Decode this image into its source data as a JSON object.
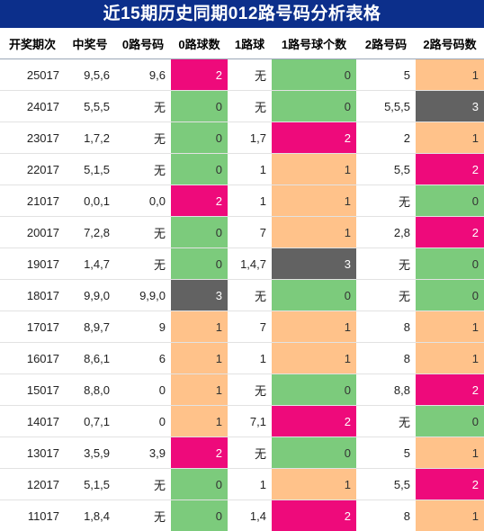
{
  "title": "近15期历史同期012路号码分析表格",
  "headers": [
    "开奖期次",
    "中奖号",
    "0路号码",
    "0路球数",
    "1路球",
    "1路号球个数",
    "2路号码",
    "2路号码数"
  ],
  "color_codes": {
    "0": "#7ccb7c",
    "1": "#ffc28a",
    "2": "#ee0a7b",
    "3": "#626262"
  },
  "rows": [
    {
      "issue": "25017",
      "numbers": "9,5,6",
      "r0": "9,6",
      "r0n": "2",
      "r1": "无",
      "r1n": "0",
      "r2": "5",
      "r2n": "1"
    },
    {
      "issue": "24017",
      "numbers": "5,5,5",
      "r0": "无",
      "r0n": "0",
      "r1": "无",
      "r1n": "0",
      "r2": "5,5,5",
      "r2n": "3"
    },
    {
      "issue": "23017",
      "numbers": "1,7,2",
      "r0": "无",
      "r0n": "0",
      "r1": "1,7",
      "r1n": "2",
      "r2": "2",
      "r2n": "1"
    },
    {
      "issue": "22017",
      "numbers": "5,1,5",
      "r0": "无",
      "r0n": "0",
      "r1": "1",
      "r1n": "1",
      "r2": "5,5",
      "r2n": "2"
    },
    {
      "issue": "21017",
      "numbers": "0,0,1",
      "r0": "0,0",
      "r0n": "2",
      "r1": "1",
      "r1n": "1",
      "r2": "无",
      "r2n": "0"
    },
    {
      "issue": "20017",
      "numbers": "7,2,8",
      "r0": "无",
      "r0n": "0",
      "r1": "7",
      "r1n": "1",
      "r2": "2,8",
      "r2n": "2"
    },
    {
      "issue": "19017",
      "numbers": "1,4,7",
      "r0": "无",
      "r0n": "0",
      "r1": "1,4,7",
      "r1n": "3",
      "r2": "无",
      "r2n": "0"
    },
    {
      "issue": "18017",
      "numbers": "9,9,0",
      "r0": "9,9,0",
      "r0n": "3",
      "r1": "无",
      "r1n": "0",
      "r2": "无",
      "r2n": "0"
    },
    {
      "issue": "17017",
      "numbers": "8,9,7",
      "r0": "9",
      "r0n": "1",
      "r1": "7",
      "r1n": "1",
      "r2": "8",
      "r2n": "1"
    },
    {
      "issue": "16017",
      "numbers": "8,6,1",
      "r0": "6",
      "r0n": "1",
      "r1": "1",
      "r1n": "1",
      "r2": "8",
      "r2n": "1"
    },
    {
      "issue": "15017",
      "numbers": "8,8,0",
      "r0": "0",
      "r0n": "1",
      "r1": "无",
      "r1n": "0",
      "r2": "8,8",
      "r2n": "2"
    },
    {
      "issue": "14017",
      "numbers": "0,7,1",
      "r0": "0",
      "r0n": "1",
      "r1": "7,1",
      "r1n": "2",
      "r2": "无",
      "r2n": "0"
    },
    {
      "issue": "13017",
      "numbers": "3,5,9",
      "r0": "3,9",
      "r0n": "2",
      "r1": "无",
      "r1n": "0",
      "r2": "5",
      "r2n": "1"
    },
    {
      "issue": "12017",
      "numbers": "5,1,5",
      "r0": "无",
      "r0n": "0",
      "r1": "1",
      "r1n": "1",
      "r2": "5,5",
      "r2n": "2"
    },
    {
      "issue": "11017",
      "numbers": "1,8,4",
      "r0": "无",
      "r0n": "0",
      "r1": "1,4",
      "r1n": "2",
      "r2": "8",
      "r2n": "1"
    }
  ]
}
